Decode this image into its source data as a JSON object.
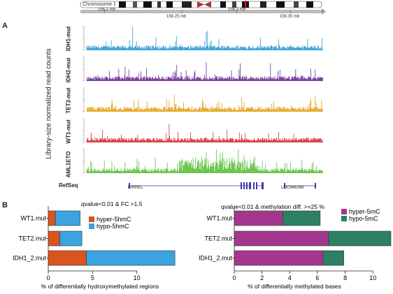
{
  "figure": {
    "panel_a_letter": "A",
    "panel_b_letter": "B",
    "chromosome_label": "Chromosome 1",
    "scale_labels": [
      "156.2 mb",
      "156.25 mb",
      "156.3 mb",
      "156.35 mb"
    ],
    "ylabel": "Library-size normalized read counts",
    "tracks": [
      {
        "name": "IDH1-mut",
        "color": "#2b9bd6"
      },
      {
        "name": "IDH2-mut",
        "color": "#6a2c93"
      },
      {
        "name": "TET2-mut",
        "color": "#e3a21a"
      },
      {
        "name": "WT1-mut",
        "color": "#d62f2f"
      },
      {
        "name": "AML1ETO",
        "color": "#5bbf3a"
      }
    ],
    "refseq_label": "RefSeq",
    "gene_labels": [
      "KIRREL",
      "LOC646268"
    ]
  },
  "chart_data": [
    {
      "type": "bar",
      "orientation": "horizontal",
      "stacked": true,
      "title": "qvalue<0.01 & FC >1.5",
      "categories": [
        "WT1.mut",
        "TET2.mut",
        "IDH1_2.mut"
      ],
      "series": [
        {
          "name": "hyper-5hmC",
          "color": "#d9541e",
          "values": [
            0.8,
            1.3,
            4.3
          ]
        },
        {
          "name": "hypo-5hmC",
          "color": "#3ba3e0",
          "values": [
            2.8,
            2.5,
            10.0
          ]
        }
      ],
      "xlabel": "% of differentially hydroxymethylated regions",
      "xlim": [
        0,
        15
      ],
      "xticks": [
        "0",
        "5",
        "10"
      ],
      "legend_position": "top-right"
    },
    {
      "type": "bar",
      "orientation": "horizontal",
      "stacked": true,
      "title": "qvalue<0.01 & methylation diff. >=25 %",
      "categories": [
        "WT1.mut",
        "TET2.mut",
        "IDH1_2.mut"
      ],
      "series": [
        {
          "name": "hyper-5mC",
          "color": "#a3378f",
          "values": [
            3.5,
            6.8,
            6.4
          ]
        },
        {
          "name": "hypo-5mC",
          "color": "#2d8062",
          "values": [
            2.7,
            4.5,
            1.5
          ]
        }
      ],
      "xlabel": "% of differentially methylated bases",
      "xlim": [
        0,
        11.3
      ],
      "xticks": [
        "0",
        "2",
        "4",
        "6",
        "8",
        "10"
      ],
      "legend_position": "top-right"
    }
  ]
}
